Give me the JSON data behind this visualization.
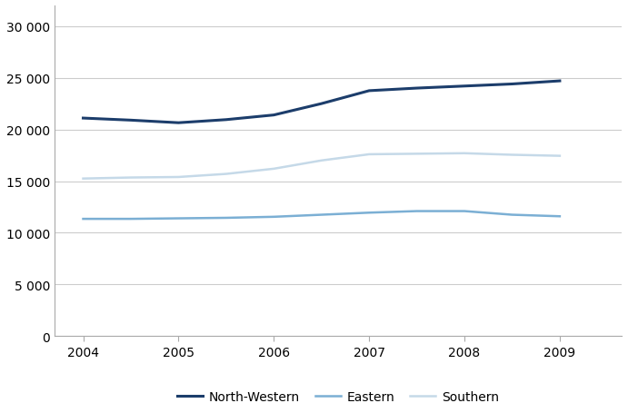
{
  "xlim": [
    2003.7,
    2009.65
  ],
  "ylim": [
    0,
    32000
  ],
  "yticks": [
    0,
    5000,
    10000,
    15000,
    20000,
    25000,
    30000
  ],
  "ytick_labels": [
    "0",
    "5 000",
    "10 000",
    "15 000",
    "20 000",
    "25 000",
    "30 000"
  ],
  "xticks": [
    2004,
    2005,
    2006,
    2007,
    2008,
    2009
  ],
  "series": [
    {
      "label": "North-Western",
      "color": "#1c3d6b",
      "linewidth": 2.2,
      "x": [
        2004,
        2004.5,
        2005,
        2005.5,
        2006,
        2006.5,
        2007,
        2007.5,
        2008,
        2008.5,
        2009
      ],
      "y": [
        21100,
        20900,
        20650,
        20950,
        21400,
        22500,
        23750,
        24000,
        24200,
        24400,
        24700
      ]
    },
    {
      "label": "Eastern",
      "color": "#7bafd4",
      "linewidth": 1.8,
      "x": [
        2004,
        2004.5,
        2005,
        2005.5,
        2006,
        2006.5,
        2007,
        2007.5,
        2008,
        2008.5,
        2009
      ],
      "y": [
        11350,
        11350,
        11400,
        11450,
        11550,
        11750,
        11950,
        12100,
        12100,
        11750,
        11600
      ]
    },
    {
      "label": "Southern",
      "color": "#c5d9e8",
      "linewidth": 1.8,
      "x": [
        2004,
        2004.5,
        2005,
        2005.5,
        2006,
        2006.5,
        2007,
        2007.5,
        2008,
        2008.5,
        2009
      ],
      "y": [
        15250,
        15350,
        15400,
        15700,
        16200,
        17000,
        17600,
        17650,
        17700,
        17550,
        17450
      ]
    }
  ],
  "grid_color": "#cccccc",
  "spine_color": "#aaaaaa",
  "background_color": "#ffffff",
  "tick_fontsize": 10,
  "label_fontsize": 11,
  "legend_fontsize": 10
}
